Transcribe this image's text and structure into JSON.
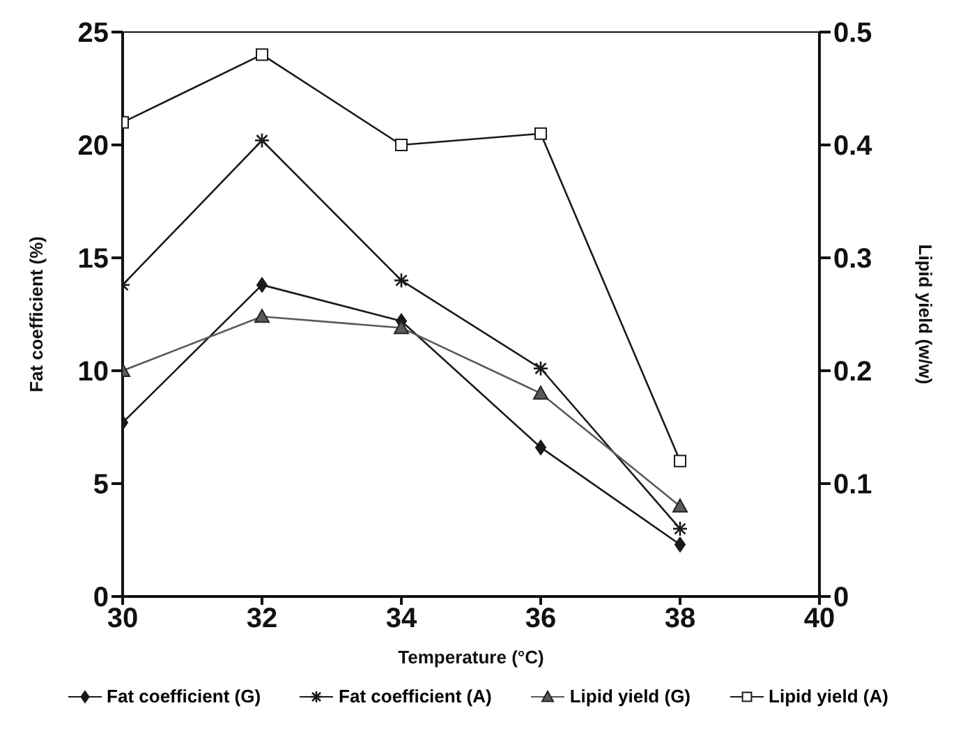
{
  "chart_data": {
    "type": "line",
    "xlabel": "Temperature (°C)",
    "ylabel": "Fat coefficient (%)",
    "y2label": "Lipid yield (w/w)",
    "x": [
      30,
      32,
      34,
      36,
      38
    ],
    "xlim": [
      30,
      40
    ],
    "xticks": [
      30,
      32,
      34,
      36,
      38,
      40
    ],
    "ylim": [
      0,
      25
    ],
    "yticks": [
      0,
      5,
      10,
      15,
      20,
      25
    ],
    "y2lim": [
      0,
      0.5
    ],
    "y2ticks": [
      0,
      0.1,
      0.2,
      0.3,
      0.4,
      0.5
    ],
    "legend": "bottom",
    "line_style": "solid",
    "series": [
      {
        "name": "Fat coefficient (G)",
        "color": "#1a1a1a",
        "marker": "diamond",
        "values": [
          7.7,
          13.8,
          12.2,
          6.6,
          2.3
        ]
      },
      {
        "name": "Fat coefficient (A)",
        "color": "#1a1a1a",
        "marker": "cross",
        "values": [
          13.8,
          20.2,
          14.0,
          10.1,
          3.0
        ]
      },
      {
        "name": "Lipid yield (G)",
        "color": "#5a5a5a",
        "marker": "triangle",
        "axis": "y2",
        "values": [
          0.2,
          0.248,
          0.238,
          0.18,
          0.08
        ]
      },
      {
        "name": "Lipid yield (A)",
        "color": "#1a1a1a",
        "marker": "square",
        "axis": "y2",
        "values": [
          0.42,
          0.48,
          0.4,
          0.41,
          0.12
        ]
      }
    ]
  }
}
